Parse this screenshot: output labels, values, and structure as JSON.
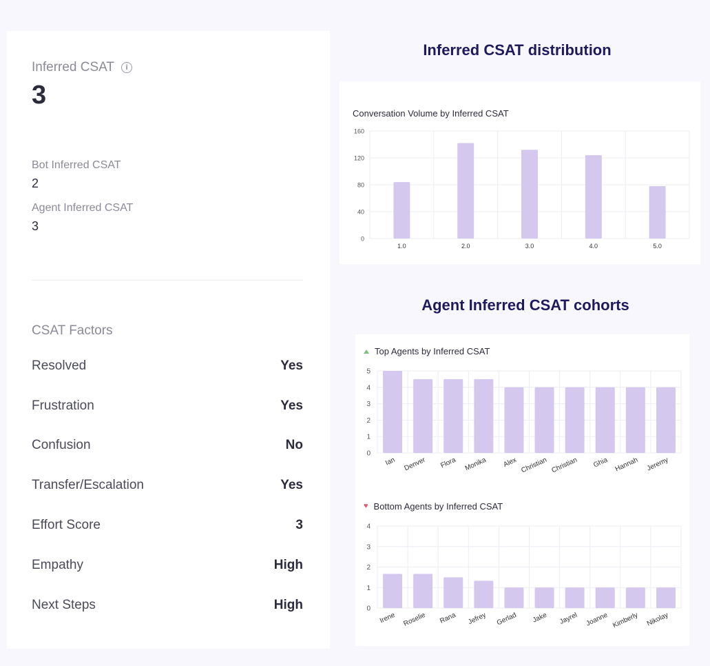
{
  "summary": {
    "inferred_csat_label": "Inferred CSAT",
    "inferred_csat_value": "3",
    "bot_label": "Bot Inferred CSAT",
    "bot_value": "2",
    "agent_label": "Agent Inferred CSAT",
    "agent_value": "3"
  },
  "factors": {
    "title": "CSAT Factors",
    "items": [
      {
        "name": "Resolved",
        "value": "Yes"
      },
      {
        "name": "Frustration",
        "value": "Yes"
      },
      {
        "name": "Confusion",
        "value": "No"
      },
      {
        "name": "Transfer/Escalation",
        "value": "Yes"
      },
      {
        "name": "Effort Score",
        "value": "3"
      },
      {
        "name": "Empathy",
        "value": "High"
      },
      {
        "name": "Next Steps",
        "value": "High"
      }
    ]
  },
  "distribution_section": {
    "title": "Inferred CSAT distribution"
  },
  "cohorts_section": {
    "title": "Agent Inferred CSAT cohorts"
  },
  "colors": {
    "bar": "#d4c8ef",
    "grid": "#ececf2",
    "heading": "#1e1a5e"
  },
  "chart_data": [
    {
      "type": "bar",
      "title": "Conversation Volume by Inferred CSAT",
      "categories": [
        "1.0",
        "2.0",
        "3.0",
        "4.0",
        "5.0"
      ],
      "values": [
        84,
        142,
        132,
        124,
        78
      ],
      "ylim": [
        0,
        160
      ],
      "yticks": [
        0,
        40,
        80,
        120,
        160
      ],
      "grid": true
    },
    {
      "type": "bar",
      "title": "Top Agents by Inferred CSAT",
      "categories": [
        "Ian",
        "Denver",
        "Flora",
        "Monika",
        "Alex",
        "Christian",
        "Christian",
        "Ghia",
        "Hannah",
        "Jeremy"
      ],
      "values": [
        5,
        4.5,
        4.5,
        4.5,
        4,
        4,
        4,
        4,
        4,
        4
      ],
      "ylim": [
        0,
        5
      ],
      "yticks": [
        0,
        1,
        2,
        3,
        4,
        5
      ],
      "grid": true
    },
    {
      "type": "bar",
      "title": "Bottom Agents by Inferred CSAT",
      "categories": [
        "Irene",
        "Roselie",
        "Rana",
        "Jefrey",
        "Gerlad",
        "Jake",
        "Jayrel",
        "Joanne",
        "Kimberly",
        "Nikolay"
      ],
      "values": [
        1.67,
        1.67,
        1.5,
        1.33,
        1,
        1,
        1,
        1,
        1,
        1
      ],
      "ylim": [
        0,
        4
      ],
      "yticks": [
        0,
        1,
        2,
        3,
        4
      ],
      "grid": true
    }
  ]
}
